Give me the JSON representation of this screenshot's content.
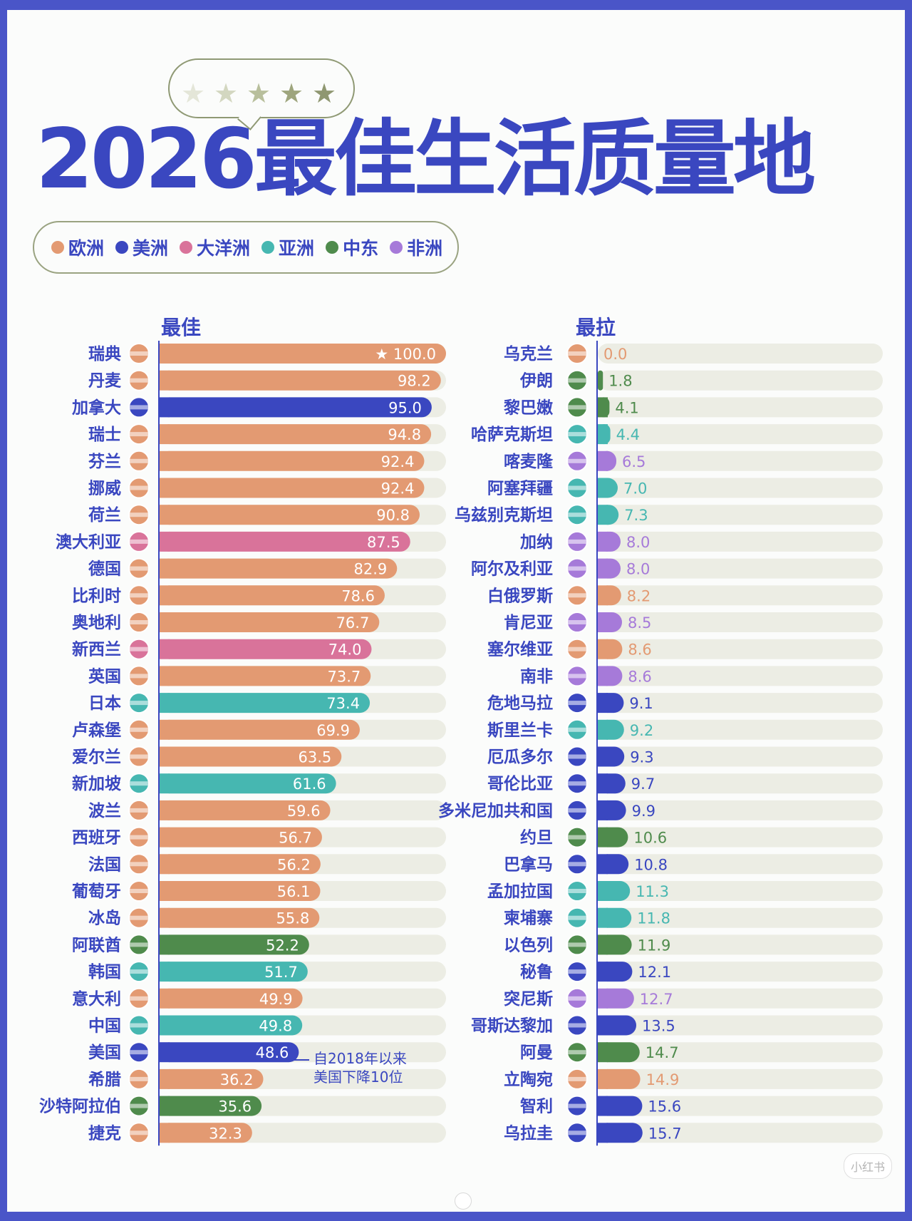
{
  "title": "2026最佳生活质量地",
  "rating_stars": {
    "count": 5,
    "colors": [
      "#e4e6d8",
      "#d3d7c0",
      "#b8bf9c",
      "#9ea57d",
      "#8f9771"
    ]
  },
  "legend": [
    {
      "label": "欧洲",
      "color": "#e39a72"
    },
    {
      "label": "美洲",
      "color": "#3a47c0"
    },
    {
      "label": "大洋洲",
      "color": "#d9739a"
    },
    {
      "label": "亚洲",
      "color": "#46b7b1"
    },
    {
      "label": "中东",
      "color": "#4f8b4c"
    },
    {
      "label": "非洲",
      "color": "#a67ad9"
    }
  ],
  "chart_data": [
    {
      "type": "bar",
      "orientation": "horizontal",
      "title": "最佳",
      "xlim": [
        0,
        100
      ],
      "rows": [
        {
          "country": "瑞典",
          "value": 100.0,
          "label": "★ 100.0",
          "region": "欧洲"
        },
        {
          "country": "丹麦",
          "value": 98.2,
          "label": "98.2",
          "region": "欧洲"
        },
        {
          "country": "加拿大",
          "value": 95.0,
          "label": "95.0",
          "region": "美洲"
        },
        {
          "country": "瑞士",
          "value": 94.8,
          "label": "94.8",
          "region": "欧洲"
        },
        {
          "country": "芬兰",
          "value": 92.4,
          "label": "92.4",
          "region": "欧洲"
        },
        {
          "country": "挪威",
          "value": 92.4,
          "label": "92.4",
          "region": "欧洲"
        },
        {
          "country": "荷兰",
          "value": 90.8,
          "label": "90.8",
          "region": "欧洲"
        },
        {
          "country": "澳大利亚",
          "value": 87.5,
          "label": "87.5",
          "region": "大洋洲"
        },
        {
          "country": "德国",
          "value": 82.9,
          "label": "82.9",
          "region": "欧洲"
        },
        {
          "country": "比利时",
          "value": 78.6,
          "label": "78.6",
          "region": "欧洲"
        },
        {
          "country": "奥地利",
          "value": 76.7,
          "label": "76.7",
          "region": "欧洲"
        },
        {
          "country": "新西兰",
          "value": 74.0,
          "label": "74.0",
          "region": "大洋洲"
        },
        {
          "country": "英国",
          "value": 73.7,
          "label": "73.7",
          "region": "欧洲"
        },
        {
          "country": "日本",
          "value": 73.4,
          "label": "73.4",
          "region": "亚洲"
        },
        {
          "country": "卢森堡",
          "value": 69.9,
          "label": "69.9",
          "region": "欧洲"
        },
        {
          "country": "爱尔兰",
          "value": 63.5,
          "label": "63.5",
          "region": "欧洲"
        },
        {
          "country": "新加坡",
          "value": 61.6,
          "label": "61.6",
          "region": "亚洲"
        },
        {
          "country": "波兰",
          "value": 59.6,
          "label": "59.6",
          "region": "欧洲"
        },
        {
          "country": "西班牙",
          "value": 56.7,
          "label": "56.7",
          "region": "欧洲"
        },
        {
          "country": "法国",
          "value": 56.2,
          "label": "56.2",
          "region": "欧洲"
        },
        {
          "country": "葡萄牙",
          "value": 56.1,
          "label": "56.1",
          "region": "欧洲"
        },
        {
          "country": "冰岛",
          "value": 55.8,
          "label": "55.8",
          "region": "欧洲"
        },
        {
          "country": "阿联酋",
          "value": 52.2,
          "label": "52.2",
          "region": "中东"
        },
        {
          "country": "韩国",
          "value": 51.7,
          "label": "51.7",
          "region": "亚洲"
        },
        {
          "country": "意大利",
          "value": 49.9,
          "label": "49.9",
          "region": "欧洲"
        },
        {
          "country": "中国",
          "value": 49.8,
          "label": "49.8",
          "region": "亚洲"
        },
        {
          "country": "美国",
          "value": 48.6,
          "label": "48.6",
          "region": "美洲"
        },
        {
          "country": "希腊",
          "value": 36.2,
          "label": "36.2",
          "region": "欧洲"
        },
        {
          "country": "沙特阿拉伯",
          "value": 35.6,
          "label": "35.6",
          "region": "中东"
        },
        {
          "country": "捷克",
          "value": 32.3,
          "label": "32.3",
          "region": "欧洲"
        }
      ],
      "annotation": {
        "country": "美国",
        "lines": [
          "自2018年以来",
          "美国下降10位"
        ]
      }
    },
    {
      "type": "bar",
      "orientation": "horizontal",
      "title": "最拉",
      "xlim": [
        0,
        100
      ],
      "rows": [
        {
          "country": "乌克兰",
          "value": 0.0,
          "label": "0.0",
          "region": "欧洲"
        },
        {
          "country": "伊朗",
          "value": 1.8,
          "label": "1.8",
          "region": "中东"
        },
        {
          "country": "黎巴嫩",
          "value": 4.1,
          "label": "4.1",
          "region": "中东"
        },
        {
          "country": "哈萨克斯坦",
          "value": 4.4,
          "label": "4.4",
          "region": "亚洲"
        },
        {
          "country": "喀麦隆",
          "value": 6.5,
          "label": "6.5",
          "region": "非洲"
        },
        {
          "country": "阿塞拜疆",
          "value": 7.0,
          "label": "7.0",
          "region": "亚洲"
        },
        {
          "country": "乌兹别克斯坦",
          "value": 7.3,
          "label": "7.3",
          "region": "亚洲"
        },
        {
          "country": "加纳",
          "value": 8.0,
          "label": "8.0",
          "region": "非洲"
        },
        {
          "country": "阿尔及利亚",
          "value": 8.0,
          "label": "8.0",
          "region": "非洲"
        },
        {
          "country": "白俄罗斯",
          "value": 8.2,
          "label": "8.2",
          "region": "欧洲"
        },
        {
          "country": "肯尼亚",
          "value": 8.5,
          "label": "8.5",
          "region": "非洲"
        },
        {
          "country": "塞尔维亚",
          "value": 8.6,
          "label": "8.6",
          "region": "欧洲"
        },
        {
          "country": "南非",
          "value": 8.6,
          "label": "8.6",
          "region": "非洲"
        },
        {
          "country": "危地马拉",
          "value": 9.1,
          "label": "9.1",
          "region": "美洲"
        },
        {
          "country": "斯里兰卡",
          "value": 9.2,
          "label": "9.2",
          "region": "亚洲"
        },
        {
          "country": "厄瓜多尔",
          "value": 9.3,
          "label": "9.3",
          "region": "美洲"
        },
        {
          "country": "哥伦比亚",
          "value": 9.7,
          "label": "9.7",
          "region": "美洲"
        },
        {
          "country": "多米尼加共和国",
          "value": 9.9,
          "label": "9.9",
          "region": "美洲"
        },
        {
          "country": "约旦",
          "value": 10.6,
          "label": "10.6",
          "region": "中东"
        },
        {
          "country": "巴拿马",
          "value": 10.8,
          "label": "10.8",
          "region": "美洲"
        },
        {
          "country": "孟加拉国",
          "value": 11.3,
          "label": "11.3",
          "region": "亚洲"
        },
        {
          "country": "柬埔寨",
          "value": 11.8,
          "label": "11.8",
          "region": "亚洲"
        },
        {
          "country": "以色列",
          "value": 11.9,
          "label": "11.9",
          "region": "中东"
        },
        {
          "country": "秘鲁",
          "value": 12.1,
          "label": "12.1",
          "region": "美洲"
        },
        {
          "country": "突尼斯",
          "value": 12.7,
          "label": "12.7",
          "region": "非洲"
        },
        {
          "country": "哥斯达黎加",
          "value": 13.5,
          "label": "13.5",
          "region": "美洲"
        },
        {
          "country": "阿曼",
          "value": 14.7,
          "label": "14.7",
          "region": "中东"
        },
        {
          "country": "立陶宛",
          "value": 14.9,
          "label": "14.9",
          "region": "欧洲"
        },
        {
          "country": "智利",
          "value": 15.6,
          "label": "15.6",
          "region": "美洲"
        },
        {
          "country": "乌拉圭",
          "value": 15.7,
          "label": "15.7",
          "region": "美洲"
        }
      ]
    }
  ],
  "watermark": "小红书"
}
